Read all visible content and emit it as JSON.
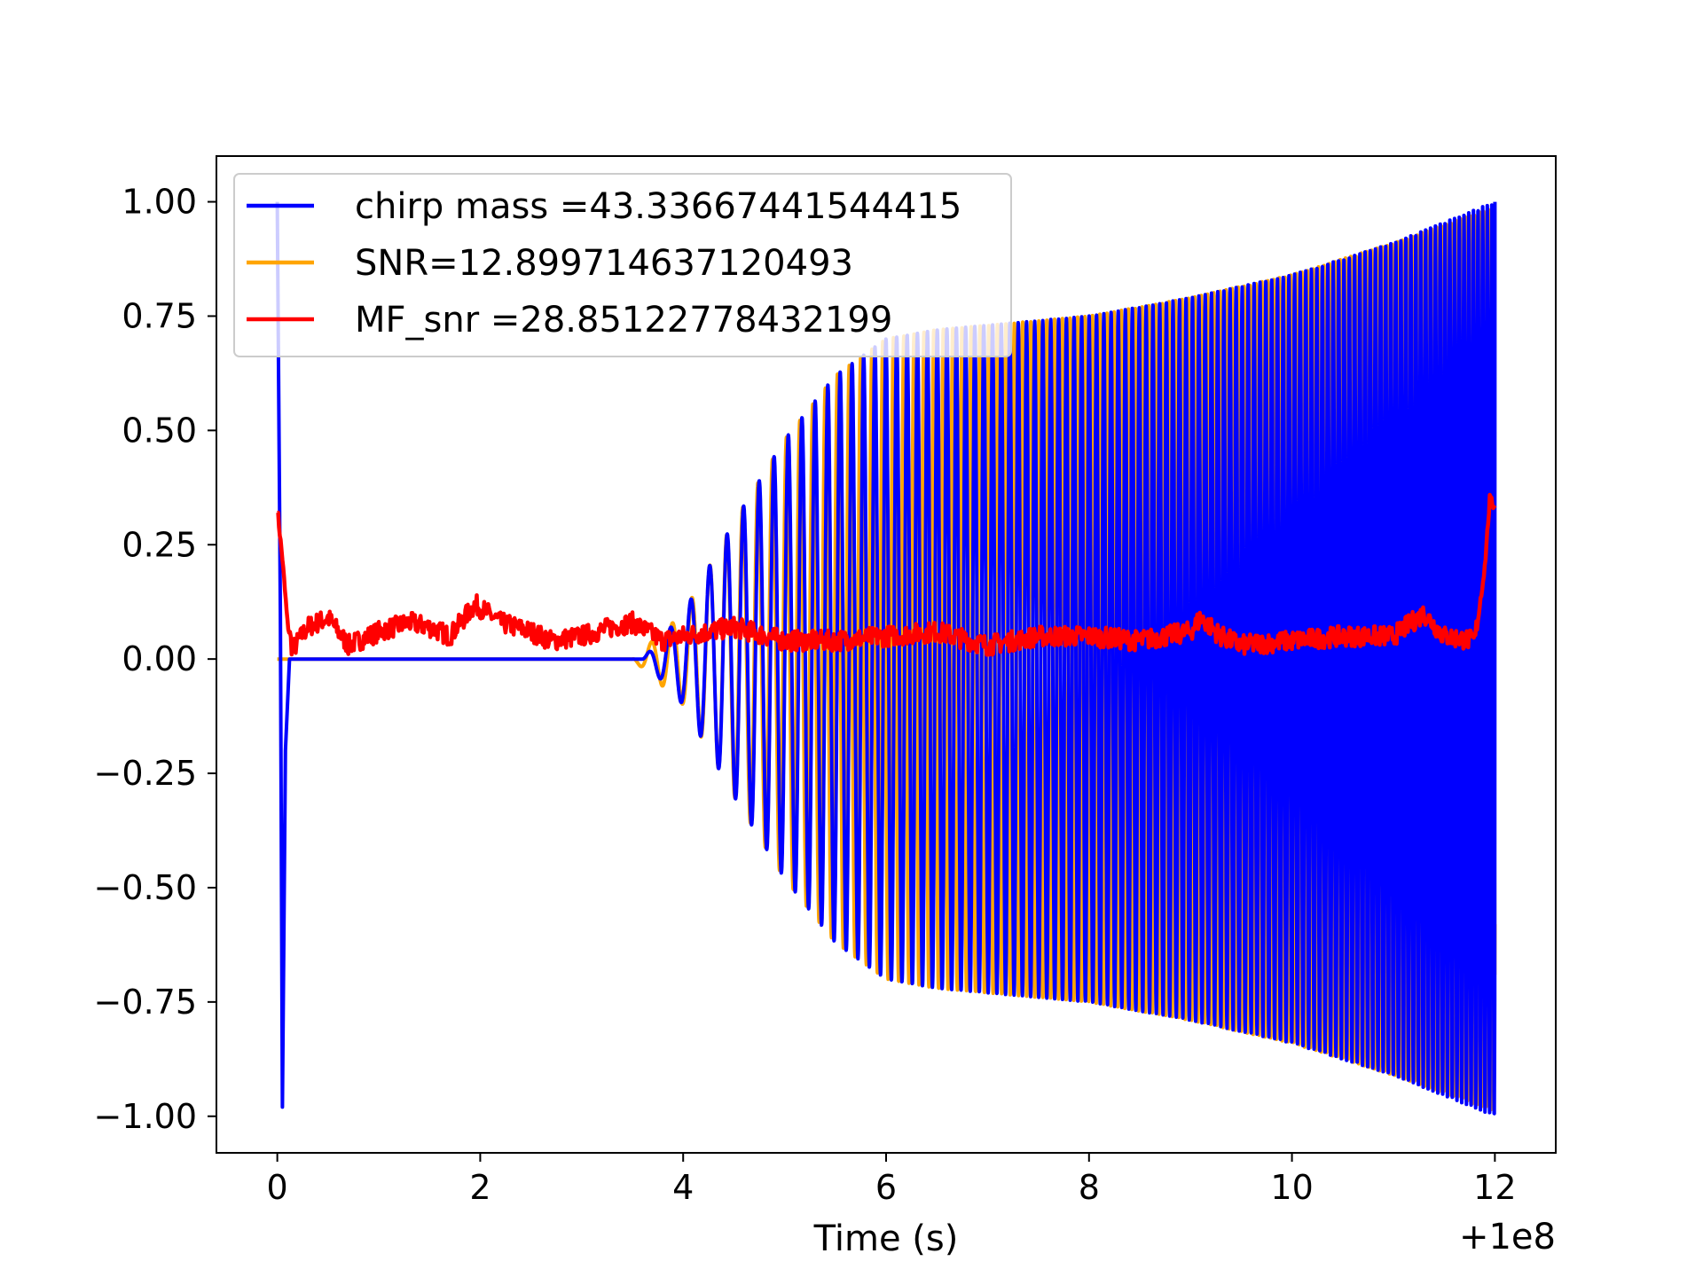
{
  "chart_data": {
    "type": "line",
    "title": "",
    "xlabel": "Time (s)",
    "ylabel": "",
    "x_offset_label": "+1e8",
    "xlim": [
      -0.6,
      12.6
    ],
    "ylim": [
      -1.08,
      1.1
    ],
    "x_ticks": [
      0,
      2,
      4,
      6,
      8,
      10,
      12
    ],
    "x_tick_labels": [
      "0",
      "2",
      "4",
      "6",
      "8",
      "10",
      "12"
    ],
    "y_ticks": [
      1.0,
      0.75,
      0.5,
      0.25,
      0.0,
      -0.25,
      -0.5,
      -0.75,
      -1.0
    ],
    "y_tick_labels": [
      "1.00",
      "0.75",
      "0.50",
      "0.25",
      "0.00",
      "−0.25",
      "−0.50",
      "−0.75",
      "−1.00"
    ],
    "grid": false,
    "legend_position": "top-left",
    "series": [
      {
        "name": "chirp mass =43.33667441544415",
        "color": "#0000ff",
        "description_shape": "blue template chirp: spike to 1.0 and -0.98 near t=0, flat 0 until ~3.6, then oscillation growing from ~0.02 to 1.0 at t=12, frequency increasing",
        "envelope": [
          [
            0.0,
            1.0
          ],
          [
            0.05,
            -0.98
          ],
          [
            0.1,
            0.0
          ],
          [
            3.6,
            0.0
          ],
          [
            4.0,
            0.1
          ],
          [
            4.5,
            0.3
          ],
          [
            5.0,
            0.48
          ],
          [
            5.5,
            0.62
          ],
          [
            6.0,
            0.7
          ],
          [
            6.5,
            0.72
          ],
          [
            7.0,
            0.73
          ],
          [
            8.0,
            0.75
          ],
          [
            9.0,
            0.79
          ],
          [
            10.0,
            0.84
          ],
          [
            11.0,
            0.91
          ],
          [
            12.0,
            1.0
          ]
        ]
      },
      {
        "name": "SNR=12.899714637120493",
        "color": "#ffa500",
        "description_shape": "orange injected signal: flat 0 until ~3.5, then oscillation envelope matching blue, ending near -0.98 at t=12",
        "envelope": [
          [
            0.0,
            0.0
          ],
          [
            3.5,
            0.0
          ],
          [
            4.0,
            0.1
          ],
          [
            4.5,
            0.3
          ],
          [
            5.0,
            0.48
          ],
          [
            5.5,
            0.62
          ],
          [
            6.0,
            0.7
          ],
          [
            6.5,
            0.72
          ],
          [
            7.0,
            0.73
          ],
          [
            8.0,
            0.75
          ],
          [
            9.0,
            0.79
          ],
          [
            10.0,
            0.84
          ],
          [
            11.0,
            0.91
          ],
          [
            12.0,
            0.99
          ]
        ]
      },
      {
        "name": "MF_snr =28.85122778432199",
        "color": "#ff0000",
        "description_shape": "red matched-filter output, noisy curve",
        "points": [
          [
            0.0,
            0.33
          ],
          [
            0.05,
            0.22
          ],
          [
            0.1,
            0.08
          ],
          [
            0.15,
            0.02
          ],
          [
            0.3,
            0.07
          ],
          [
            0.5,
            0.09
          ],
          [
            0.7,
            0.03
          ],
          [
            1.0,
            0.06
          ],
          [
            1.3,
            0.08
          ],
          [
            1.5,
            0.07
          ],
          [
            1.7,
            0.05
          ],
          [
            1.95,
            0.12
          ],
          [
            2.2,
            0.08
          ],
          [
            2.5,
            0.06
          ],
          [
            2.7,
            0.04
          ],
          [
            3.0,
            0.05
          ],
          [
            3.3,
            0.07
          ],
          [
            3.5,
            0.08
          ],
          [
            3.8,
            0.04
          ],
          [
            4.0,
            0.05
          ],
          [
            4.5,
            0.07
          ],
          [
            5.0,
            0.04
          ],
          [
            5.5,
            0.04
          ],
          [
            6.0,
            0.05
          ],
          [
            6.5,
            0.06
          ],
          [
            7.0,
            0.03
          ],
          [
            7.5,
            0.05
          ],
          [
            8.0,
            0.05
          ],
          [
            8.5,
            0.04
          ],
          [
            9.0,
            0.06
          ],
          [
            9.1,
            0.09
          ],
          [
            9.3,
            0.05
          ],
          [
            9.5,
            0.03
          ],
          [
            10.0,
            0.04
          ],
          [
            10.5,
            0.05
          ],
          [
            11.0,
            0.05
          ],
          [
            11.3,
            0.1
          ],
          [
            11.5,
            0.05
          ],
          [
            11.8,
            0.04
          ],
          [
            11.9,
            0.2
          ],
          [
            11.95,
            0.35
          ],
          [
            12.0,
            0.33
          ]
        ]
      }
    ]
  }
}
